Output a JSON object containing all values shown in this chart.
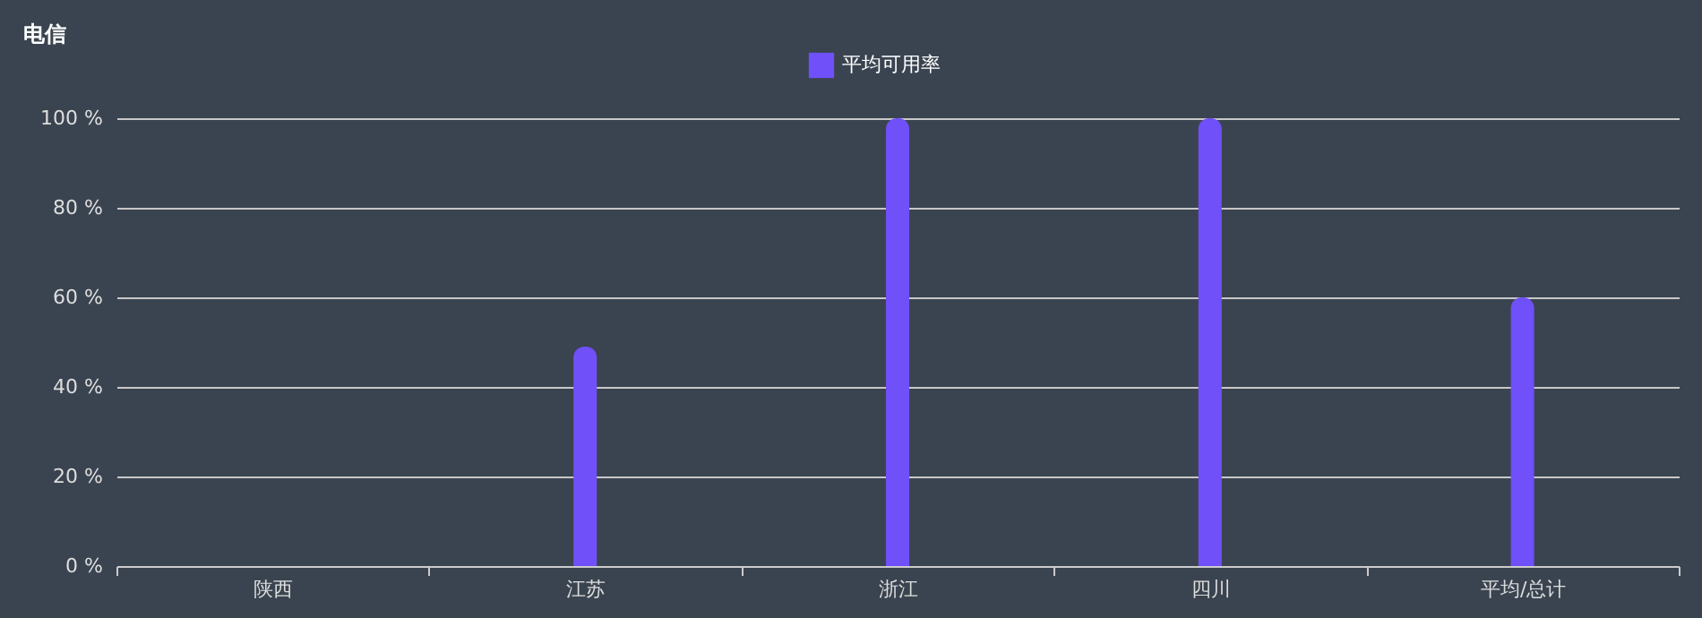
{
  "chart_data": {
    "type": "bar",
    "title": "电信",
    "categories": [
      "陕西",
      "江苏",
      "浙江",
      "四川",
      "平均/总计"
    ],
    "series": [
      {
        "name": "平均可用率",
        "color": "#7050f8",
        "values": [
          0,
          49,
          100,
          100,
          60
        ]
      }
    ],
    "ylim": [
      0,
      100
    ],
    "yticks": [
      {
        "value": 0,
        "label": "0 %"
      },
      {
        "value": 20,
        "label": "20 %"
      },
      {
        "value": 40,
        "label": "40 %"
      },
      {
        "value": 60,
        "label": "60 %"
      },
      {
        "value": 80,
        "label": "80 %"
      },
      {
        "value": 100,
        "label": "100 %"
      }
    ],
    "grid": "y",
    "legend": "top"
  }
}
